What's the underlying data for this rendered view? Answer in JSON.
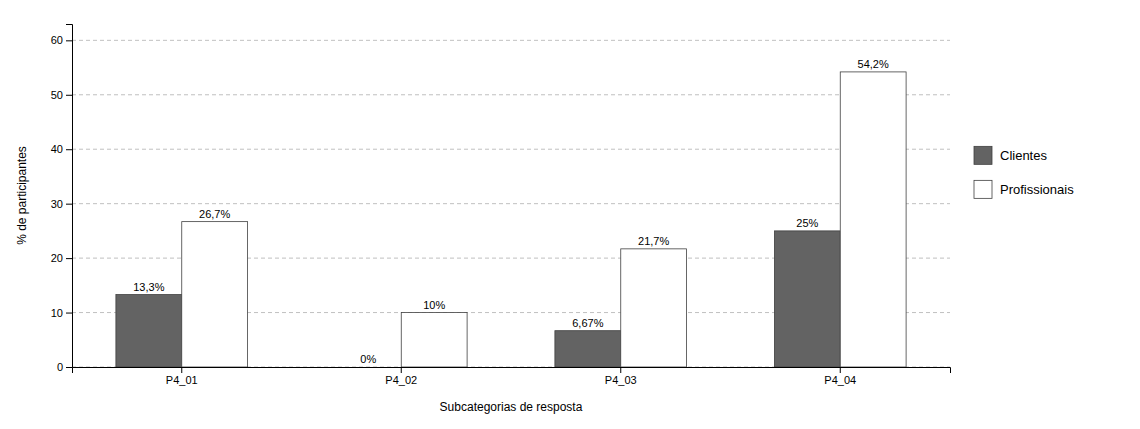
{
  "chart_data": {
    "type": "bar",
    "categories": [
      "P4_01",
      "P4_02",
      "P4_03",
      "P4_04"
    ],
    "series": [
      {
        "name": "Clientes",
        "color": "#636363",
        "values": [
          13.3,
          0,
          6.67,
          25
        ],
        "value_labels": [
          "13,3%",
          "0%",
          "6,67%",
          "25%"
        ]
      },
      {
        "name": "Profissionais",
        "color": "#ffffff",
        "values": [
          26.7,
          10,
          21.7,
          54.2
        ],
        "value_labels": [
          "26,7%",
          "10%",
          "21,7%",
          "54,2%"
        ]
      }
    ],
    "xlabel": "Subcategorias de resposta",
    "ylabel": "% de participantes",
    "ylim": [
      0,
      63
    ],
    "yticks": [
      0,
      10,
      20,
      30,
      40,
      50,
      60
    ],
    "grid": true,
    "data_labels": true,
    "legend": "right"
  }
}
